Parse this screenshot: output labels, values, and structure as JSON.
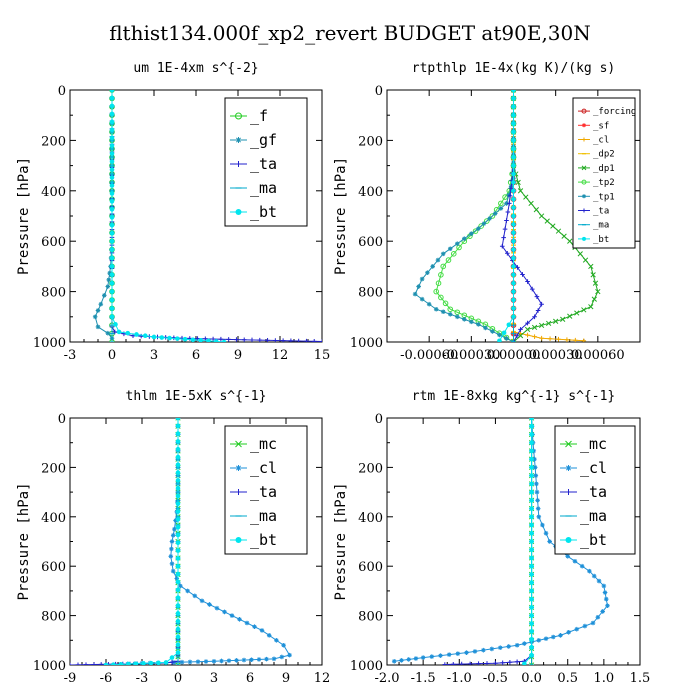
{
  "suptitle": "flthist134.000f_xp2_revert  BUDGET at90E,30N",
  "chart_data": [
    {
      "type": "line",
      "title": "um  1E-4xm s^{-2}",
      "ylabel": "Pressure [hPa]",
      "ylim": [
        0,
        1000
      ],
      "xlim": [
        -3,
        15
      ],
      "xticks": [
        "-3",
        "0",
        "3",
        "6",
        "9",
        "12",
        "15"
      ],
      "xtick_values": [
        -3,
        0,
        3,
        6,
        9,
        12,
        15
      ],
      "yticks": [
        "0",
        "200",
        "400",
        "600",
        "800",
        "1000"
      ],
      "ytick_values": [
        0,
        200,
        400,
        600,
        800,
        1000
      ],
      "legend_position": "top-right",
      "series": [
        {
          "name": "_f",
          "color": "#22cc22",
          "marker": "circle",
          "x": [
            0,
            0,
            0,
            0,
            0,
            0,
            0,
            0,
            0,
            0,
            0
          ],
          "y": [
            0,
            100,
            200,
            300,
            400,
            500,
            600,
            700,
            800,
            900,
            1000
          ]
        },
        {
          "name": "_gf",
          "color": "#1e90b0",
          "marker": "star",
          "x": [
            0,
            0,
            0,
            0,
            -0.1,
            -0.3,
            -0.8,
            -1.2,
            -1.0,
            -0.3,
            0
          ],
          "y": [
            0,
            200,
            400,
            600,
            700,
            780,
            850,
            900,
            940,
            965,
            985
          ]
        },
        {
          "name": "_ta",
          "color": "#2222cc",
          "marker": "plus",
          "x": [
            0,
            0,
            0,
            0,
            0.2,
            1.5,
            5,
            10,
            15
          ],
          "y": [
            0,
            400,
            800,
            940,
            960,
            975,
            985,
            992,
            998
          ]
        },
        {
          "name": "_ma",
          "color": "#00aacc",
          "marker": "dash",
          "x": [
            0,
            0,
            0,
            0,
            0,
            0
          ],
          "y": [
            0,
            200,
            400,
            600,
            800,
            1000
          ]
        },
        {
          "name": "_bt",
          "color": "#00e5ee",
          "marker": "dot",
          "x": [
            0,
            0,
            0,
            0.5,
            3,
            8
          ],
          "y": [
            0,
            600,
            900,
            960,
            980,
            1000
          ]
        }
      ]
    },
    {
      "type": "line",
      "title": "rtpthlp  1E-4x(kg K)/(kg s)",
      "ylabel": "Pressure [hPa]",
      "ylim": [
        0,
        1000
      ],
      "xlim": [
        -0.0009,
        0.0009
      ],
      "xticks": [
        "-0.00060",
        "-0.00030",
        "0.00000",
        "0.00030",
        "0.00060"
      ],
      "xtick_values": [
        -0.0006,
        -0.0003,
        0,
        0.0003,
        0.0006
      ],
      "yticks": [
        "0",
        "200",
        "400",
        "600",
        "800",
        "1000"
      ],
      "ytick_values": [
        0,
        200,
        400,
        600,
        800,
        1000
      ],
      "legend_position": "top-right",
      "series": [
        {
          "name": "_forcing",
          "color": "#cc2222",
          "marker": "circle",
          "x": [
            0,
            0,
            0,
            0,
            0,
            0,
            0
          ],
          "y": [
            0,
            200,
            400,
            600,
            800,
            900,
            1000
          ]
        },
        {
          "name": "_sf",
          "color": "#ff3030",
          "marker": "star",
          "x": [
            0,
            0,
            0,
            0,
            0,
            0
          ],
          "y": [
            0,
            200,
            400,
            600,
            800,
            1000
          ]
        },
        {
          "name": "_cl",
          "color": "#f0a800",
          "marker": "plus",
          "x": [
            0,
            0,
            0,
            0,
            0.0002,
            0.0005
          ],
          "y": [
            0,
            400,
            800,
            960,
            985,
            995
          ]
        },
        {
          "name": "_dp2",
          "color": "#f0c000",
          "marker": "dash",
          "x": [
            0,
            0,
            0,
            0,
            0
          ],
          "y": [
            0,
            400,
            800,
            990,
            1000
          ]
        },
        {
          "name": "_dp1",
          "color": "#22aa22",
          "marker": "cross",
          "x": [
            0,
            0,
            5e-05,
            0.0002,
            0.0004,
            0.00055,
            0.0006,
            0.00055,
            0.00035,
            0.0001,
            0
          ],
          "y": [
            0,
            300,
            400,
            500,
            600,
            700,
            800,
            860,
            910,
            950,
            1000
          ]
        },
        {
          "name": "_tp2",
          "color": "#44dd44",
          "marker": "circle",
          "x": [
            0,
            0,
            -3e-05,
            -0.00015,
            -0.00035,
            -0.0005,
            -0.00055,
            -0.00045,
            -0.0002,
            0
          ],
          "y": [
            0,
            300,
            400,
            500,
            600,
            700,
            800,
            870,
            930,
            1000
          ]
        },
        {
          "name": "_tp1",
          "color": "#1e90b0",
          "marker": "star",
          "x": [
            0,
            0,
            -5e-05,
            -0.00025,
            -0.0005,
            -0.00065,
            -0.0007,
            -0.00055,
            -0.00025,
            0
          ],
          "y": [
            0,
            350,
            450,
            550,
            650,
            750,
            810,
            870,
            930,
            1000
          ]
        },
        {
          "name": "_ta",
          "color": "#2222cc",
          "marker": "plus",
          "x": [
            0,
            0,
            -3e-05,
            -8e-05,
            0.0001,
            0.0002,
            0.00015,
            5e-05,
            0
          ],
          "y": [
            0,
            300,
            450,
            620,
            760,
            850,
            900,
            950,
            1000
          ]
        },
        {
          "name": "_ma",
          "color": "#00aacc",
          "marker": "dash",
          "x": [
            0,
            0,
            0,
            0,
            0
          ],
          "y": [
            0,
            300,
            600,
            900,
            1000
          ]
        },
        {
          "name": "_bt",
          "color": "#00e5ee",
          "marker": "dot",
          "x": [
            0,
            0,
            0,
            0,
            -0.0001
          ],
          "y": [
            0,
            300,
            600,
            900,
            995
          ]
        }
      ]
    },
    {
      "type": "line",
      "title": "thlm  1E-5xK s^{-1}",
      "ylabel": "Pressure [hPa]",
      "ylim": [
        0,
        1000
      ],
      "xlim": [
        -9,
        12
      ],
      "xticks": [
        "-9",
        "-6",
        "-3",
        "0",
        "3",
        "6",
        "9",
        "12"
      ],
      "xtick_values": [
        -9,
        -6,
        -3,
        0,
        3,
        6,
        9,
        12
      ],
      "yticks": [
        "0",
        "200",
        "400",
        "600",
        "800",
        "1000"
      ],
      "ytick_values": [
        0,
        200,
        400,
        600,
        800,
        1000
      ],
      "legend_position": "top-right",
      "series": [
        {
          "name": "_mc",
          "color": "#22cc22",
          "marker": "cross",
          "x": [
            0,
            0,
            0,
            0,
            0,
            0,
            0,
            0,
            0,
            0,
            0
          ],
          "y": [
            0,
            100,
            200,
            300,
            400,
            500,
            600,
            700,
            800,
            900,
            1000
          ]
        },
        {
          "name": "_cl",
          "color": "#1e90d8",
          "marker": "star",
          "x": [
            0,
            0,
            -0.1,
            -0.3,
            -0.5,
            -0.6,
            -0.4,
            0.2,
            2,
            4.5,
            7,
            8.8,
            9.3,
            8,
            3,
            -3,
            -6
          ],
          "y": [
            0,
            300,
            380,
            450,
            500,
            560,
            620,
            680,
            740,
            800,
            860,
            920,
            960,
            975,
            985,
            993,
            1000
          ]
        },
        {
          "name": "_ta",
          "color": "#2222cc",
          "marker": "plus",
          "x": [
            0,
            0,
            0,
            0,
            0,
            -1,
            -4,
            -7,
            -9
          ],
          "y": [
            0,
            400,
            800,
            960,
            985,
            992,
            996,
            998,
            1000
          ]
        },
        {
          "name": "_ma",
          "color": "#00aacc",
          "marker": "dash",
          "x": [
            0,
            0,
            0,
            0,
            0,
            0
          ],
          "y": [
            0,
            200,
            400,
            600,
            800,
            1000
          ]
        },
        {
          "name": "_bt",
          "color": "#00e5ee",
          "marker": "dot",
          "x": [
            0,
            0,
            0,
            -1,
            -6
          ],
          "y": [
            0,
            600,
            950,
            990,
            1000
          ]
        }
      ]
    },
    {
      "type": "line",
      "title": "rtm  1E-8xkg kg^{-1} s^{-1}",
      "ylabel": "Pressure [hPa]",
      "ylim": [
        0,
        1000
      ],
      "xlim": [
        -2.0,
        1.5
      ],
      "xticks": [
        "-2.0",
        "-1.5",
        "-1.0",
        "-0.5",
        "0.0",
        "0.5",
        "1.0",
        "1.5"
      ],
      "xtick_values": [
        -2.0,
        -1.5,
        -1.0,
        -0.5,
        0.0,
        0.5,
        1.0,
        1.5
      ],
      "yticks": [
        "0",
        "200",
        "400",
        "600",
        "800",
        "1000"
      ],
      "ytick_values": [
        0,
        200,
        400,
        600,
        800,
        1000
      ],
      "legend_position": "top-right",
      "series": [
        {
          "name": "_mc",
          "color": "#22cc22",
          "marker": "cross",
          "x": [
            0,
            0,
            0,
            0,
            0,
            0,
            0,
            0,
            0,
            0,
            0
          ],
          "y": [
            0,
            100,
            200,
            300,
            400,
            500,
            600,
            700,
            800,
            900,
            1000
          ]
        },
        {
          "name": "_cl",
          "color": "#1e90d8",
          "marker": "star",
          "x": [
            0,
            0.02,
            0.05,
            0.1,
            0.25,
            0.5,
            0.8,
            1.0,
            1.05,
            0.85,
            0.4,
            -0.2,
            -0.9,
            -1.5,
            -1.9
          ],
          "y": [
            0,
            100,
            200,
            400,
            500,
            560,
            620,
            680,
            760,
            830,
            880,
            920,
            950,
            970,
            985
          ]
        },
        {
          "name": "_ta",
          "color": "#2222cc",
          "marker": "plus",
          "x": [
            0,
            0,
            0,
            0,
            -0.1,
            -0.5,
            -1.2
          ],
          "y": [
            0,
            400,
            800,
            960,
            985,
            993,
            998
          ]
        },
        {
          "name": "_ma",
          "color": "#00aacc",
          "marker": "dash",
          "x": [
            0,
            0,
            0,
            0,
            0,
            0
          ],
          "y": [
            0,
            200,
            400,
            600,
            800,
            1000
          ]
        },
        {
          "name": "_bt",
          "color": "#00e5ee",
          "marker": "dot",
          "x": [
            0,
            0,
            0,
            0,
            -0.1
          ],
          "y": [
            0,
            400,
            800,
            960,
            995
          ]
        }
      ]
    }
  ]
}
